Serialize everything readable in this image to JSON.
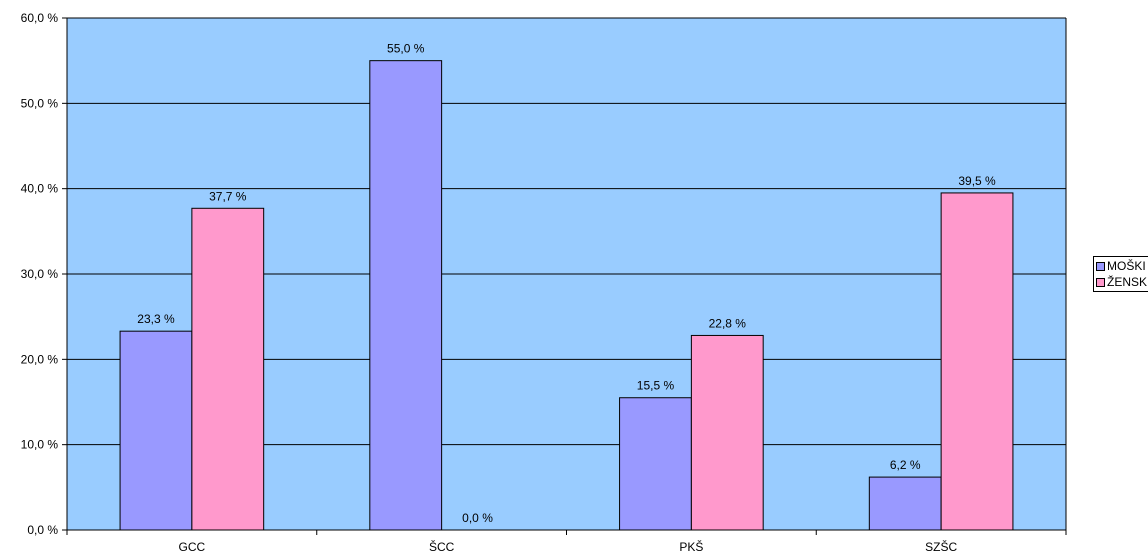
{
  "chart_data": {
    "type": "bar",
    "categories": [
      "GCC",
      "ŠCC",
      "PKŠ",
      "SZŠC"
    ],
    "series": [
      {
        "name": "MOŠKI",
        "values": [
          23.3,
          55.0,
          15.5,
          6.2
        ],
        "labels": [
          "23,3 %",
          "55,0 %",
          "15,5 %",
          "6,2 %"
        ],
        "color": "#9999ff"
      },
      {
        "name": "ŽENSKI",
        "values": [
          37.7,
          0.0,
          22.8,
          39.5
        ],
        "labels": [
          "37,7 %",
          "0,0 %",
          "22,8 %",
          "39,5 %"
        ],
        "color": "#ff99cc"
      }
    ],
    "ylim": [
      0,
      60
    ],
    "yticks": [
      "0,0 %",
      "10,0 %",
      "20,0 %",
      "30,0 %",
      "40,0 %",
      "50,0 %",
      "60,0 %"
    ],
    "ytick_values": [
      0,
      10,
      20,
      30,
      40,
      50,
      60
    ],
    "grid": true,
    "legend_position": "right",
    "plot_background": "#99ccff",
    "title": "",
    "xlabel": "",
    "ylabel": ""
  }
}
